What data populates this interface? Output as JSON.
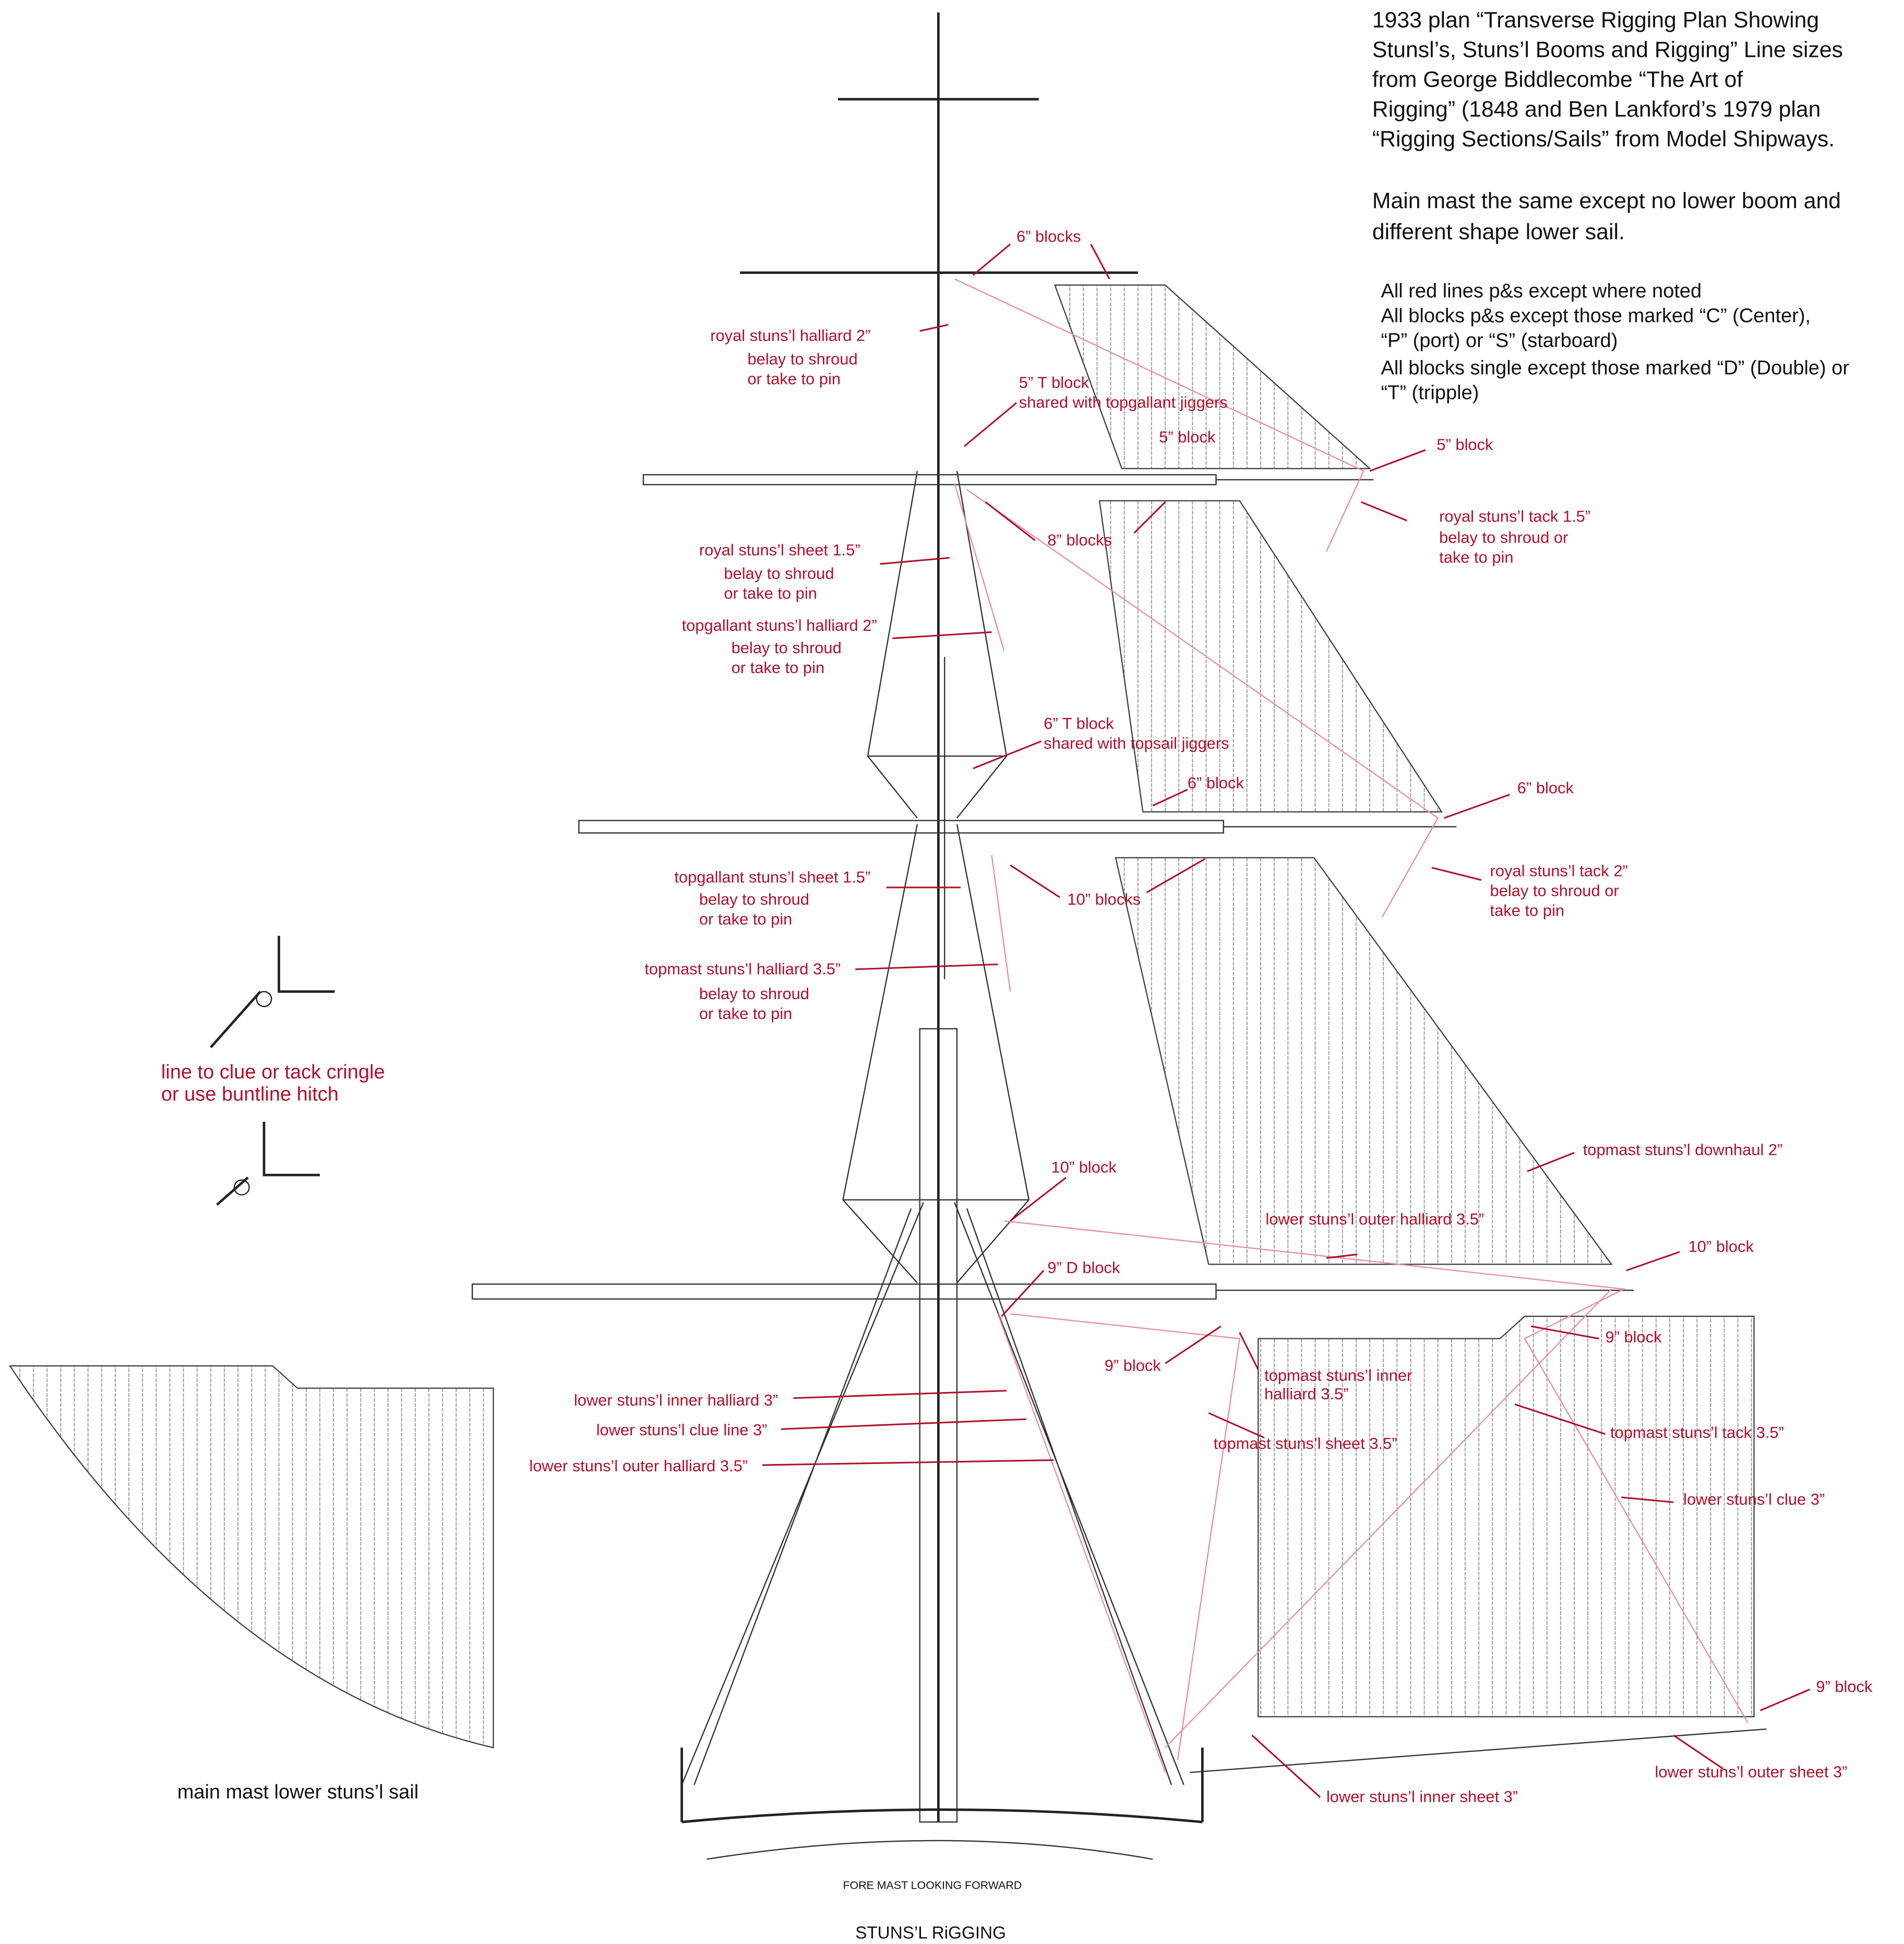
{
  "notes": {
    "source": [
      "1933 plan “Transverse Rigging Plan Showing",
      "Stunsl’s, Stuns’l Booms and Rigging” Line sizes",
      "from George Biddlecombe “The Art of",
      "Rigging” (1848 and Ben Lankford’s 1979 plan",
      "“Rigging Sections/Sails” from Model Shipways."
    ],
    "main_mast": [
      "Main mast the same except no lower boom and",
      "different shape lower sail."
    ],
    "conventions": [
      "All red lines p&s except where noted",
      "All blocks p&s except those marked “C” (Center),",
      "“P” (port) or “S” (starboard)",
      "All blocks single except those marked “D” (Double) or",
      "“T” (tripple)"
    ]
  },
  "labels": [
    "6” blocks",
    "royal stuns’l halliard 2”",
    "belay to shroud",
    "or take to pin",
    "5” T block",
    "shared with topgallant jiggers",
    "5” block",
    "5” block",
    "royal stuns’l tack 1.5”",
    "belay to shroud or",
    "take to pin",
    "8” blocks",
    "royal stuns’l sheet 1.5”",
    "belay to shroud",
    "or take to pin",
    "topgallant stuns’l halliard 2”",
    "belay to shroud",
    "or take to pin",
    "6” T block",
    "shared with topsail jiggers",
    "6” block",
    "6” block",
    "royal stuns’l tack 2”",
    "belay to shroud or",
    "take to pin",
    "topgallant stuns’l sheet 1.5”",
    "belay to shroud",
    "or take to pin",
    "10” blocks",
    "topmast stuns’l halliard 3.5”",
    "belay to shroud",
    "or take to pin",
    "line to clue or tack cringle",
    "or use buntline hitch",
    "10” block",
    "topmast stuns’l downhaul 2”",
    "lower stuns’l outer halliard 3.5”",
    "10” block",
    "9” D block",
    "9” block",
    "9” block",
    "topmast stuns’l inner",
    "halliard 3.5”",
    "lower stuns’l inner halliard 3”",
    "lower stuns’l clue line 3”",
    "topmast stuns’l tack 3.5”",
    "topmast stuns’l sheet 3.5”",
    "lower stuns’l outer halliard 3.5”",
    "lower stuns’l clue 3”",
    "9” block",
    "lower stuns’l  outer sheet 3”",
    "lower stuns’l inner sheet 3”"
  ],
  "captions": {
    "side_sail": "main mast lower stuns’l sail",
    "view": "FORE MAST LOOKING FORWARD",
    "title": "STUNS’L RiGGING"
  }
}
